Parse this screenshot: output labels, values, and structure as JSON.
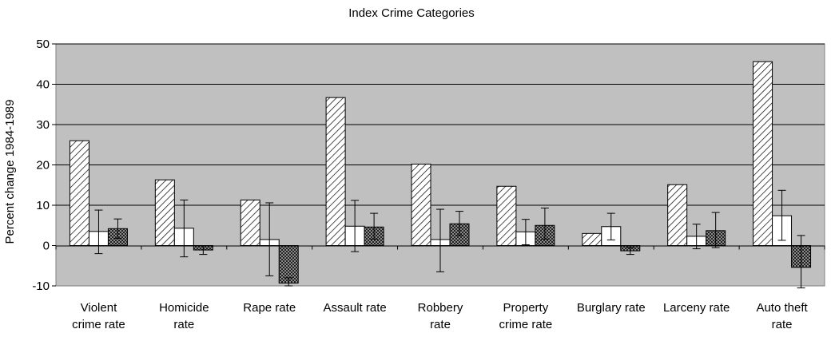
{
  "chart_data": {
    "type": "bar",
    "title": "Index Crime Categories",
    "ylabel": "Percent change 1984-1989",
    "xlabel": "",
    "ylim": [
      -10,
      50
    ],
    "yticks": [
      -10,
      0,
      10,
      20,
      30,
      40,
      50
    ],
    "grid": true,
    "legend": "none",
    "categories": [
      [
        "Violent",
        "crime rate"
      ],
      [
        "Homicide",
        "rate"
      ],
      [
        "Rape rate"
      ],
      [
        "Assault rate"
      ],
      [
        "Robbery",
        "rate"
      ],
      [
        "Property",
        "crime rate"
      ],
      [
        "Burglary rate"
      ],
      [
        "Larceny rate"
      ],
      [
        "Auto theft",
        "rate"
      ]
    ],
    "series": [
      {
        "pattern": "diagonal-hatch",
        "values": [
          26,
          16.3,
          11.3,
          36.7,
          20.2,
          14.7,
          3,
          15.1,
          45.6
        ],
        "error_low": [
          null,
          null,
          null,
          null,
          null,
          null,
          null,
          null,
          null
        ],
        "error_high": [
          null,
          null,
          null,
          null,
          null,
          null,
          null,
          null,
          null
        ]
      },
      {
        "pattern": "white",
        "values": [
          3.5,
          4.3,
          1.5,
          4.8,
          1.5,
          3.4,
          4.7,
          2.3,
          7.4
        ],
        "error_low": [
          -2,
          -2.8,
          -7.5,
          -1.5,
          -6.5,
          0.2,
          1.4,
          -0.8,
          1.3
        ],
        "error_high": [
          8.8,
          11.3,
          10.6,
          11.2,
          9,
          6.5,
          8,
          5.3,
          13.7
        ]
      },
      {
        "pattern": "crosshatch",
        "values": [
          4.2,
          -1.1,
          -9.3,
          4.6,
          5.4,
          5,
          -1.3,
          3.7,
          -5.4
        ],
        "error_low": [
          1.8,
          -2.2,
          -10,
          1.6,
          2.5,
          1.6,
          -2.2,
          -0.5,
          -10.5
        ],
        "error_high": [
          6.6,
          -0.1,
          -8,
          8,
          8.5,
          9.3,
          -0.5,
          8.2,
          2.5
        ]
      }
    ]
  }
}
